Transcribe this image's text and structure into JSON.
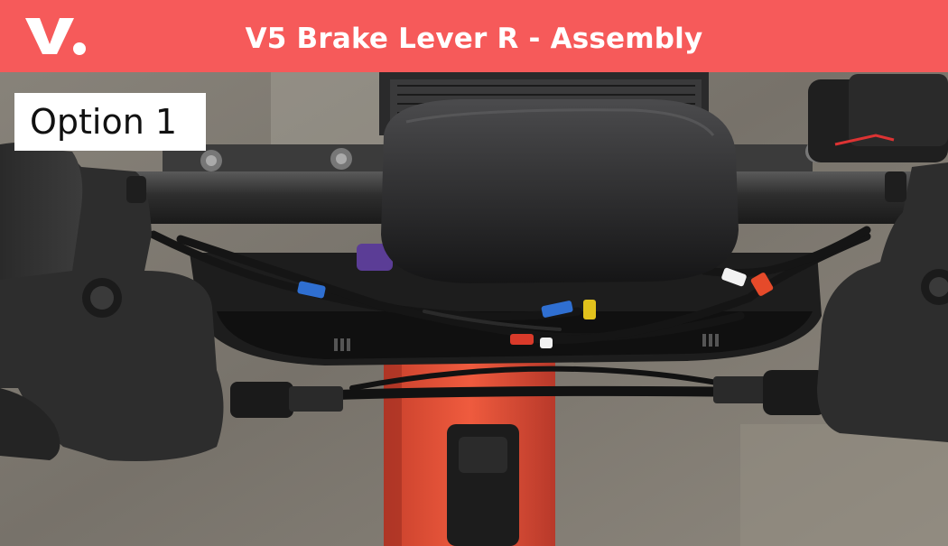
{
  "header": {
    "logo_text": "V.",
    "title": "V5 Brake Lever R - Assembly",
    "background_color": "#f65a5a"
  },
  "overlay": {
    "option_label": "Option 1"
  },
  "photo": {
    "content": "scooter-handlebar-photo"
  }
}
